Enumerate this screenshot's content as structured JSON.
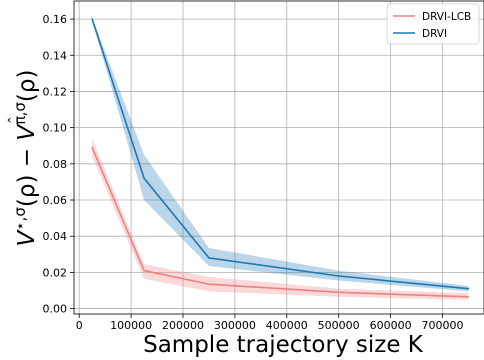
{
  "chart_data": {
    "type": "line",
    "title": "",
    "xlabel": "Sample trajectory size K",
    "ylabel": "V^{⋆,σ}(ρ) − V^{π̂,σ}(ρ)",
    "ylabel_parts": {
      "v1": "V",
      "sup1": "⋆,σ",
      "rho1": "(ρ) − ",
      "v2": "V",
      "sup2_pi": "π",
      "sup2_hat": "ˆ",
      "sup2_rest": ",σ",
      "rho2": "(ρ)"
    },
    "xlim": [
      -10000,
      780000
    ],
    "ylim": [
      -0.003,
      0.17
    ],
    "xticks": [
      0,
      100000,
      200000,
      300000,
      400000,
      500000,
      600000,
      700000
    ],
    "xtick_labels": [
      "0",
      "100000",
      "200000",
      "300000",
      "400000",
      "500000",
      "600000",
      "700000"
    ],
    "yticks": [
      0.0,
      0.02,
      0.04,
      0.06,
      0.08,
      0.1,
      0.12,
      0.14,
      0.16
    ],
    "ytick_labels": [
      "0.00",
      "0.02",
      "0.04",
      "0.06",
      "0.08",
      "0.10",
      "0.12",
      "0.14",
      "0.16"
    ],
    "grid": true,
    "legend_position": "top-right",
    "series": [
      {
        "name": "DRVI-LCB",
        "color": "#f08080",
        "x": [
          25000,
          125000,
          250000,
          500000,
          750000
        ],
        "y": [
          0.089,
          0.021,
          0.0135,
          0.009,
          0.0065
        ],
        "lower": [
          0.084,
          0.0165,
          0.0095,
          0.0065,
          0.0048
        ],
        "upper": [
          0.094,
          0.0245,
          0.0175,
          0.011,
          0.0085
        ]
      },
      {
        "name": "DRVI",
        "color": "#1f77b4",
        "x": [
          25000,
          125000,
          250000,
          500000,
          750000
        ],
        "y": [
          0.16,
          0.072,
          0.028,
          0.018,
          0.011
        ],
        "lower": [
          0.159,
          0.06,
          0.0235,
          0.0155,
          0.0095
        ],
        "upper": [
          0.161,
          0.085,
          0.0335,
          0.021,
          0.0125
        ]
      }
    ]
  }
}
